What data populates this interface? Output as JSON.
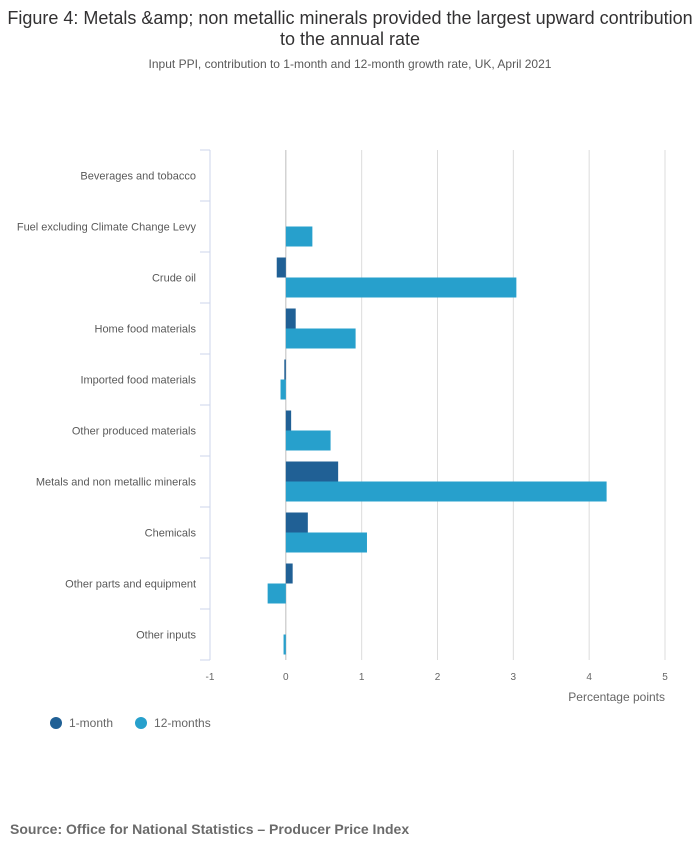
{
  "chart_data": {
    "type": "bar",
    "orientation": "horizontal",
    "title": "Figure 4: Metals &amp; non metallic minerals provided the largest upward contribution to the annual rate",
    "subtitle": "Input PPI, contribution to 1-month and 12-month growth rate, UK, April 2021",
    "categories": [
      "Beverages and tobacco",
      "Fuel excluding Climate Change Levy",
      "Crude oil",
      "Home food materials",
      "Imported food materials",
      "Other produced materials",
      "Metals and non metallic minerals",
      "Chemicals",
      "Other parts and equipment",
      "Other inputs"
    ],
    "series": [
      {
        "name": "1-month",
        "color": "#206095",
        "values": [
          0,
          0,
          -0.12,
          0.13,
          -0.02,
          0.07,
          0.69,
          0.29,
          0.09,
          0
        ]
      },
      {
        "name": "12-months",
        "color": "#27a0cc",
        "values": [
          0,
          0.35,
          3.04,
          0.92,
          -0.07,
          0.59,
          4.23,
          1.07,
          -0.24,
          -0.03
        ]
      }
    ],
    "xlabel": "Percentage points",
    "xlim": [
      -1,
      5
    ],
    "xticks": [
      "-1",
      "0",
      "1",
      "2",
      "3",
      "4",
      "5"
    ],
    "grid": true,
    "legend_position": "bottom-left"
  },
  "source": "Source: Office for National Statistics – Producer Price Index"
}
